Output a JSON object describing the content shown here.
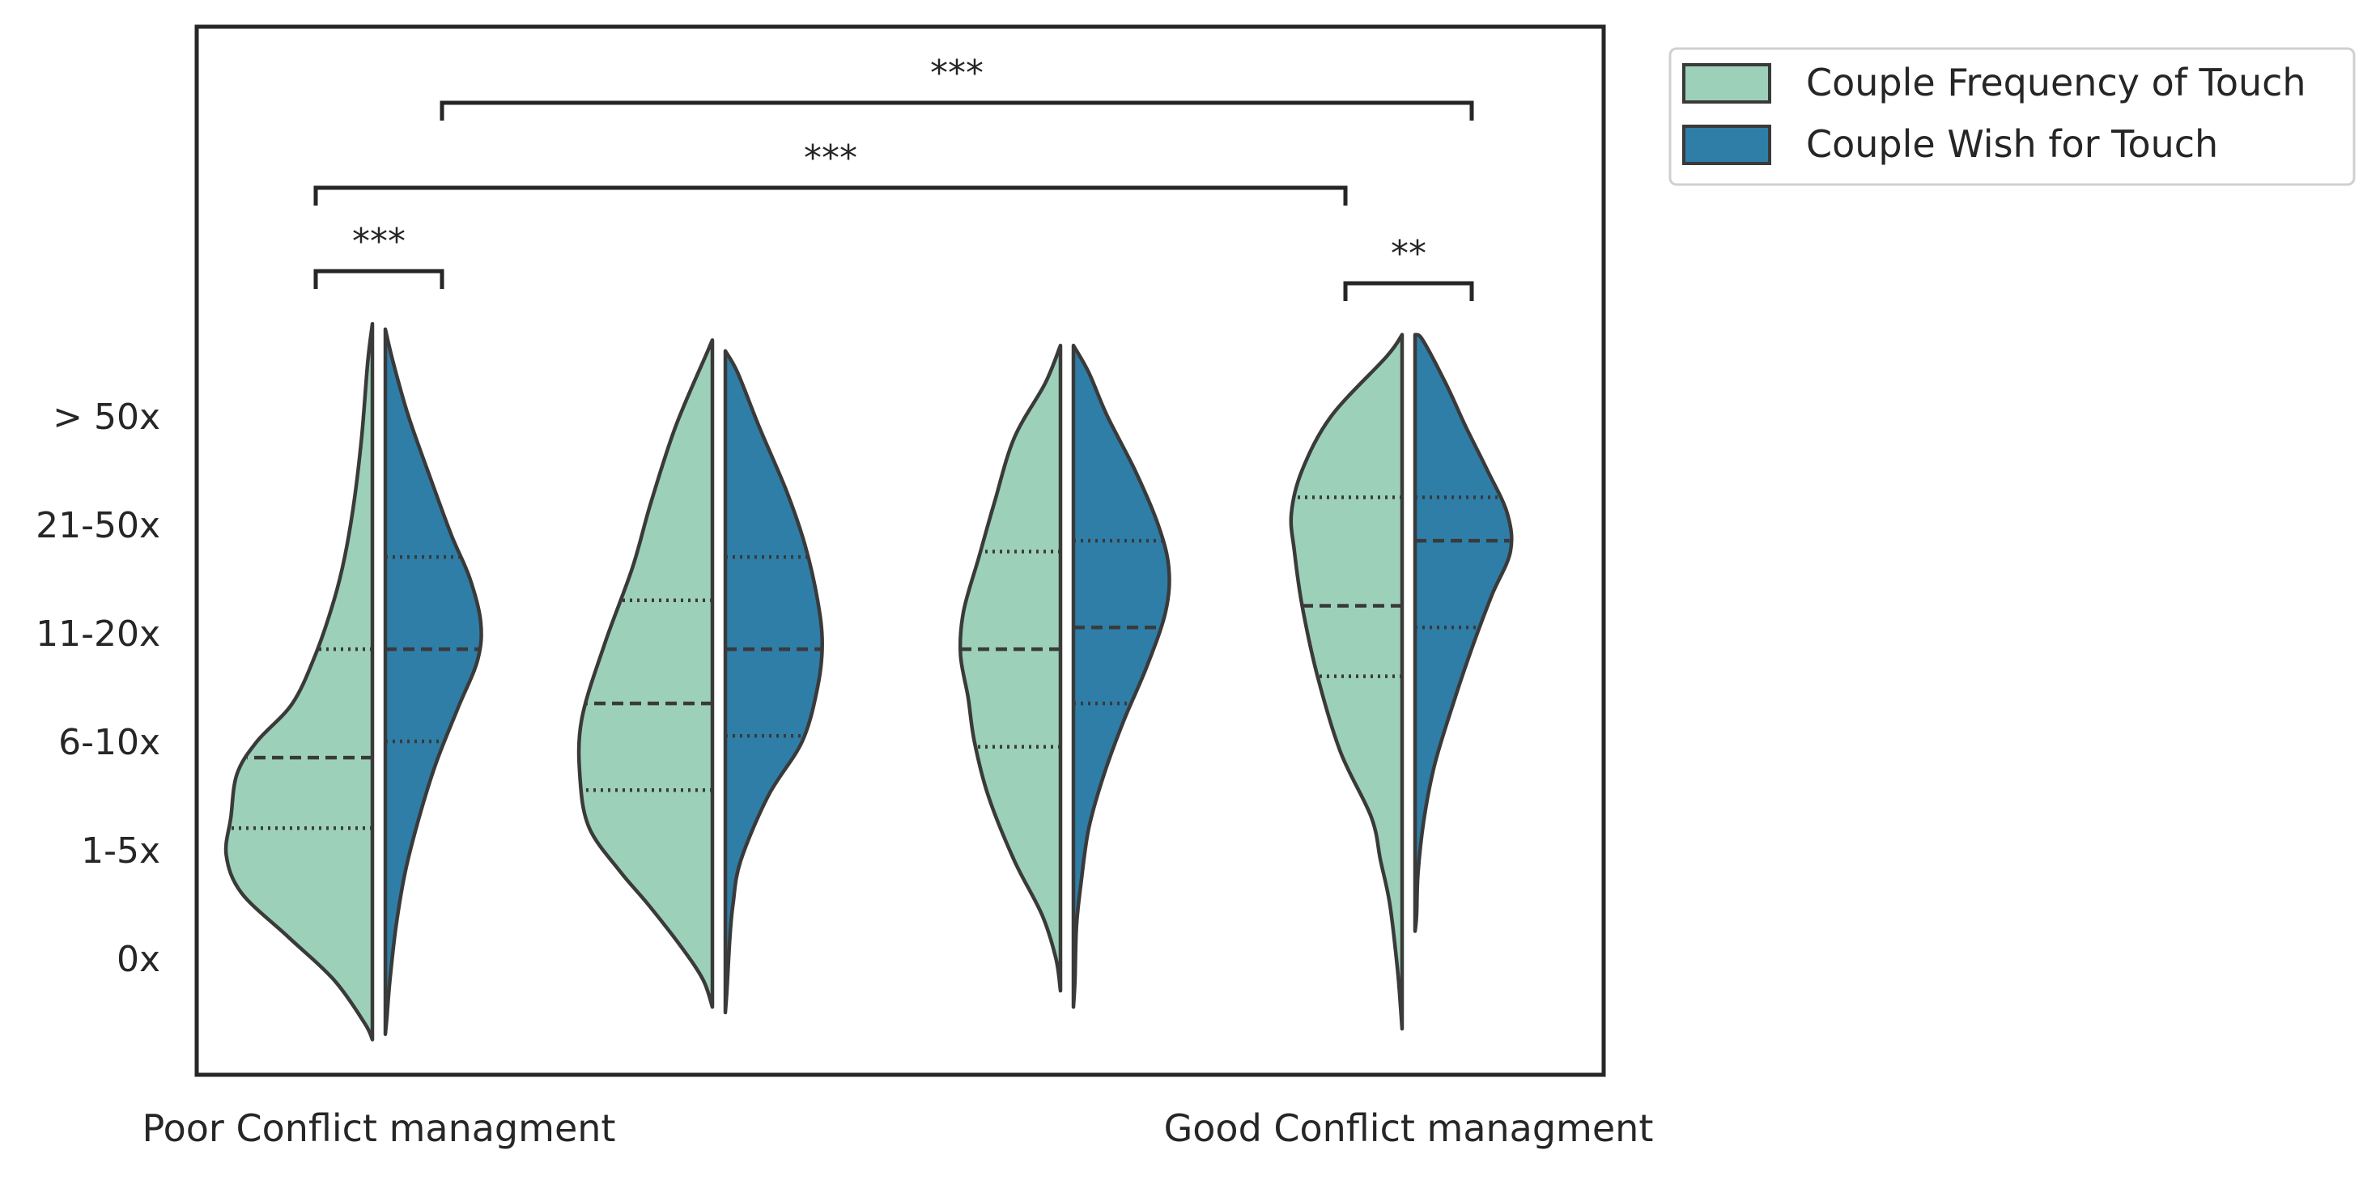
{
  "chart_data": {
    "type": "violin",
    "split": true,
    "x_labels": [
      "Poor Conflict managment",
      "",
      "",
      "Good Conflict managment"
    ],
    "ytick_labels": [
      "0x",
      "1-5x",
      "6-10x",
      "11-20x",
      "21-50x",
      "> 50x"
    ],
    "y_range": [
      -0.8,
      6.2
    ],
    "grid": false,
    "legend_position": "outside-top-right",
    "series": [
      {
        "name": "Couple Frequency of Touch",
        "color": "#9dd0b8",
        "groups": [
          {
            "q1": 1.2,
            "median": 1.85,
            "q3": 2.85,
            "profile": [
              [
                -0.75,
                0.0
              ],
              [
                -0.6,
                0.05
              ],
              [
                -0.2,
                0.25
              ],
              [
                0.2,
                0.55
              ],
              [
                0.6,
                0.85
              ],
              [
                0.95,
                0.95
              ],
              [
                1.3,
                0.92
              ],
              [
                1.7,
                0.88
              ],
              [
                2.0,
                0.75
              ],
              [
                2.35,
                0.52
              ],
              [
                2.8,
                0.37
              ],
              [
                3.3,
                0.25
              ],
              [
                3.7,
                0.18
              ],
              [
                4.2,
                0.12
              ],
              [
                4.8,
                0.07
              ],
              [
                5.5,
                0.03
              ],
              [
                5.85,
                0.0
              ]
            ]
          },
          {
            "q1": 1.55,
            "median": 2.35,
            "q3": 3.3,
            "profile": [
              [
                -0.45,
                0.0
              ],
              [
                -0.2,
                0.06
              ],
              [
                0.1,
                0.2
              ],
              [
                0.5,
                0.42
              ],
              [
                0.8,
                0.6
              ],
              [
                1.2,
                0.8
              ],
              [
                1.65,
                0.86
              ],
              [
                2.2,
                0.85
              ],
              [
                2.9,
                0.7
              ],
              [
                3.6,
                0.52
              ],
              [
                4.2,
                0.4
              ],
              [
                4.9,
                0.24
              ],
              [
                5.6,
                0.03
              ],
              [
                5.7,
                0.0
              ]
            ]
          },
          {
            "q1": 1.95,
            "median": 2.85,
            "q3": 3.75,
            "profile": [
              [
                -0.3,
                0.0
              ],
              [
                0.0,
                0.03
              ],
              [
                0.4,
                0.12
              ],
              [
                0.9,
                0.3
              ],
              [
                1.5,
                0.47
              ],
              [
                2.0,
                0.56
              ],
              [
                2.4,
                0.6
              ],
              [
                2.8,
                0.65
              ],
              [
                3.2,
                0.63
              ],
              [
                3.7,
                0.53
              ],
              [
                4.2,
                0.43
              ],
              [
                4.8,
                0.3
              ],
              [
                5.3,
                0.1
              ],
              [
                5.65,
                0.0
              ]
            ]
          },
          {
            "q1": 2.6,
            "median": 3.25,
            "q3": 4.25,
            "profile": [
              [
                -0.65,
                0.0
              ],
              [
                -0.45,
                0.01
              ],
              [
                -0.1,
                0.03
              ],
              [
                0.5,
                0.08
              ],
              [
                0.9,
                0.14
              ],
              [
                1.3,
                0.2
              ],
              [
                1.9,
                0.4
              ],
              [
                2.6,
                0.55
              ],
              [
                3.25,
                0.65
              ],
              [
                3.75,
                0.7
              ],
              [
                4.1,
                0.72
              ],
              [
                4.5,
                0.65
              ],
              [
                5.0,
                0.46
              ],
              [
                5.55,
                0.1
              ],
              [
                5.75,
                0.0
              ]
            ]
          }
        ]
      },
      {
        "name": "Couple Wish for Touch",
        "color": "#2e7ea8",
        "groups": [
          {
            "q1": 2.0,
            "median": 2.85,
            "q3": 3.7,
            "profile": [
              [
                -0.7,
                0.0
              ],
              [
                -0.55,
                0.01
              ],
              [
                -0.2,
                0.03
              ],
              [
                0.3,
                0.07
              ],
              [
                0.8,
                0.13
              ],
              [
                1.3,
                0.22
              ],
              [
                1.8,
                0.33
              ],
              [
                2.3,
                0.47
              ],
              [
                2.75,
                0.6
              ],
              [
                3.1,
                0.62
              ],
              [
                3.5,
                0.55
              ],
              [
                3.9,
                0.43
              ],
              [
                4.4,
                0.3
              ],
              [
                5.0,
                0.15
              ],
              [
                5.5,
                0.05
              ],
              [
                5.8,
                0.0
              ]
            ]
          },
          {
            "q1": 2.05,
            "median": 2.85,
            "q3": 3.7,
            "profile": [
              [
                -0.5,
                0.0
              ],
              [
                -0.3,
                0.01
              ],
              [
                0.2,
                0.03
              ],
              [
                0.5,
                0.05
              ],
              [
                0.9,
                0.1
              ],
              [
                1.5,
                0.28
              ],
              [
                2.0,
                0.5
              ],
              [
                2.5,
                0.6
              ],
              [
                2.9,
                0.63
              ],
              [
                3.3,
                0.6
              ],
              [
                3.8,
                0.52
              ],
              [
                4.3,
                0.4
              ],
              [
                4.9,
                0.22
              ],
              [
                5.4,
                0.08
              ],
              [
                5.6,
                0.0
              ]
            ]
          },
          {
            "q1": 2.35,
            "median": 3.05,
            "q3": 3.85,
            "profile": [
              [
                -0.45,
                0.0
              ],
              [
                -0.2,
                0.01
              ],
              [
                0.3,
                0.02
              ],
              [
                0.7,
                0.05
              ],
              [
                1.2,
                0.1
              ],
              [
                1.7,
                0.2
              ],
              [
                2.2,
                0.33
              ],
              [
                2.7,
                0.48
              ],
              [
                3.2,
                0.6
              ],
              [
                3.6,
                0.62
              ],
              [
                4.0,
                0.55
              ],
              [
                4.5,
                0.4
              ],
              [
                5.0,
                0.22
              ],
              [
                5.4,
                0.1
              ],
              [
                5.65,
                0.0
              ]
            ]
          },
          {
            "q1": 3.05,
            "median": 3.85,
            "q3": 4.25,
            "profile": [
              [
                0.25,
                0.0
              ],
              [
                0.4,
                0.01
              ],
              [
                0.8,
                0.02
              ],
              [
                1.3,
                0.06
              ],
              [
                1.8,
                0.13
              ],
              [
                2.4,
                0.26
              ],
              [
                2.9,
                0.38
              ],
              [
                3.35,
                0.5
              ],
              [
                3.75,
                0.62
              ],
              [
                4.1,
                0.6
              ],
              [
                4.5,
                0.47
              ],
              [
                4.9,
                0.33
              ],
              [
                5.3,
                0.2
              ],
              [
                5.7,
                0.05
              ],
              [
                5.75,
                0.0
              ]
            ]
          }
        ]
      }
    ],
    "significance": [
      {
        "label": "***",
        "from": [
          0,
          "left"
        ],
        "to": [
          0,
          "right"
        ],
        "level": 0
      },
      {
        "label": "**",
        "from": [
          3,
          "left"
        ],
        "to": [
          3,
          "right"
        ],
        "level": 0
      },
      {
        "label": "***",
        "from": [
          0,
          "left"
        ],
        "to": [
          3,
          "left"
        ],
        "level": 1
      },
      {
        "label": "***",
        "from": [
          0,
          "right"
        ],
        "to": [
          3,
          "right"
        ],
        "level": 2
      }
    ]
  }
}
